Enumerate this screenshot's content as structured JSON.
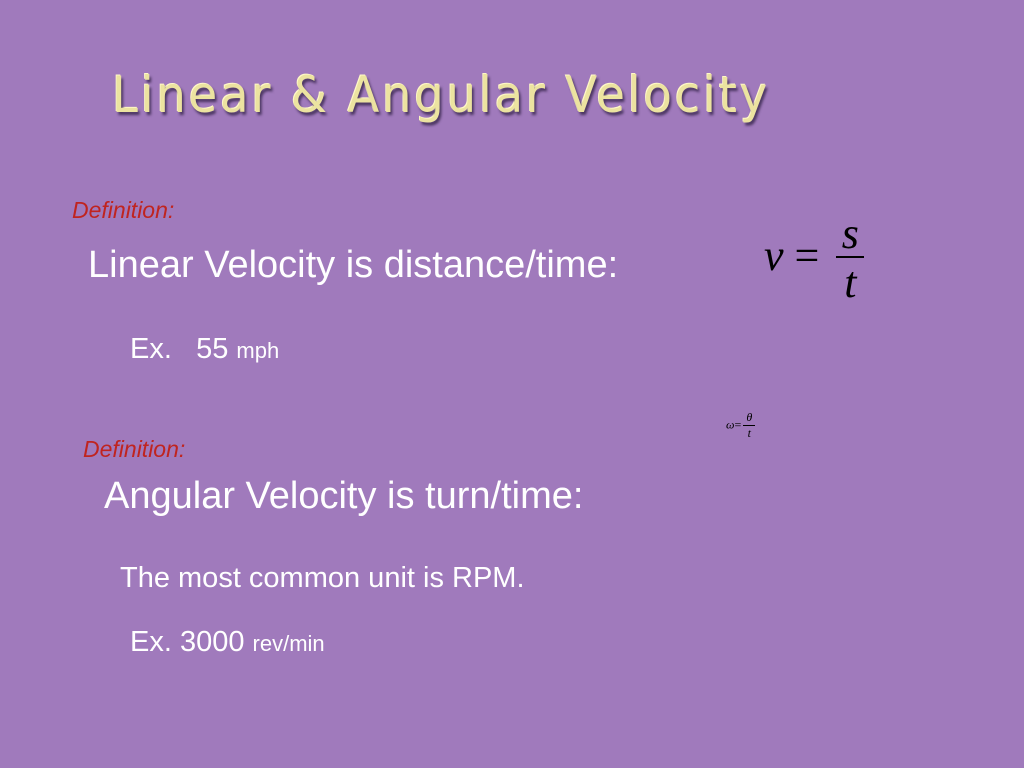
{
  "slide": {
    "title": "Linear  &  Angular Velocity",
    "linear": {
      "definition_label": "Definition:",
      "text": "Linear Velocity is distance/time:",
      "formula": {
        "lhs": "v",
        "eq": "=",
        "num": "s",
        "den": "t"
      },
      "example_label": "Ex.",
      "example_value": "55",
      "example_unit": "mph"
    },
    "angular": {
      "definition_label": "Definition:",
      "text": "Angular Velocity is turn/time:",
      "formula": {
        "lhs": "ω",
        "eq": "=",
        "num": "θ",
        "den": "t"
      },
      "unit_note": "The most common unit is RPM.",
      "example_label": "Ex.",
      "example_value": "3000",
      "example_unit": "rev/min"
    }
  },
  "colors": {
    "background": "#a07abc",
    "title": "#ece3a0",
    "definition": "#c0241f"
  }
}
